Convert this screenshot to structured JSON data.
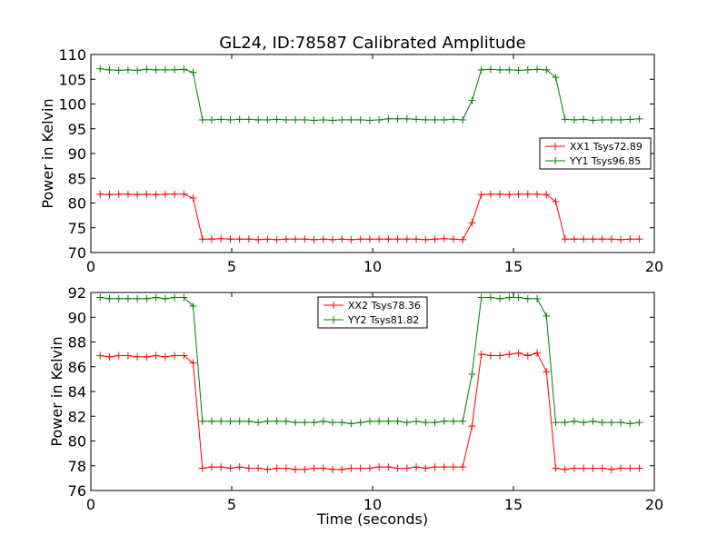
{
  "figure": {
    "title": "GL24, ID:78587 Calibrated Amplitude",
    "background": "#ffffff"
  },
  "colors": {
    "xx": "#ff0000",
    "yy": "#008000",
    "axes": "#000000"
  },
  "chart_data": [
    {
      "type": "line",
      "title": "GL24, ID:78587 Calibrated Amplitude",
      "xlabel": "",
      "ylabel": "Power in Kelvin",
      "xlim": [
        0,
        20
      ],
      "ylim": [
        70,
        110
      ],
      "xticks": [
        0,
        5,
        10,
        15,
        20
      ],
      "yticks": [
        70,
        75,
        80,
        85,
        90,
        95,
        100,
        105,
        110
      ],
      "grid": false,
      "legend_position": "center-right",
      "x": [
        0.33,
        0.66,
        0.99,
        1.32,
        1.65,
        1.98,
        2.31,
        2.64,
        2.97,
        3.3,
        3.63,
        3.96,
        4.29,
        4.62,
        4.95,
        5.28,
        5.61,
        5.94,
        6.27,
        6.6,
        6.93,
        7.26,
        7.59,
        7.92,
        8.25,
        8.58,
        8.91,
        9.24,
        9.57,
        9.9,
        10.23,
        10.56,
        10.89,
        11.22,
        11.55,
        11.88,
        12.21,
        12.54,
        12.87,
        13.2,
        13.53,
        13.86,
        14.19,
        14.52,
        14.85,
        15.18,
        15.51,
        15.84,
        16.17,
        16.5,
        16.83,
        17.16,
        17.49,
        17.82,
        18.15,
        18.48,
        18.81,
        19.14,
        19.47
      ],
      "series": [
        {
          "name": "XX1 Tsys72.89",
          "color": "#ff0000",
          "values": [
            81.8,
            81.7,
            81.8,
            81.8,
            81.7,
            81.8,
            81.7,
            81.8,
            81.8,
            81.8,
            81.0,
            72.7,
            72.7,
            72.8,
            72.7,
            72.7,
            72.7,
            72.6,
            72.7,
            72.6,
            72.7,
            72.7,
            72.7,
            72.6,
            72.7,
            72.6,
            72.7,
            72.6,
            72.7,
            72.7,
            72.7,
            72.7,
            72.7,
            72.7,
            72.7,
            72.6,
            72.7,
            72.8,
            72.7,
            72.6,
            76.0,
            81.7,
            81.8,
            81.8,
            81.7,
            81.8,
            81.8,
            81.8,
            81.7,
            80.3,
            72.7,
            72.7,
            72.7,
            72.7,
            72.7,
            72.7,
            72.6,
            72.7,
            72.7
          ]
        },
        {
          "name": "YY1 Tsys96.85",
          "color": "#008000",
          "values": [
            107.1,
            106.9,
            106.8,
            106.9,
            106.8,
            107.0,
            106.9,
            106.9,
            106.9,
            107.0,
            106.4,
            96.8,
            96.8,
            96.9,
            96.8,
            96.9,
            96.9,
            96.8,
            96.8,
            96.9,
            96.8,
            96.8,
            96.8,
            96.7,
            96.8,
            96.7,
            96.8,
            96.8,
            96.8,
            96.7,
            96.8,
            97.0,
            97.0,
            97.0,
            96.9,
            96.8,
            96.8,
            96.8,
            96.9,
            96.8,
            100.7,
            106.9,
            107.0,
            106.9,
            106.9,
            106.8,
            106.9,
            107.0,
            106.9,
            105.4,
            96.9,
            96.8,
            96.9,
            96.7,
            96.8,
            96.8,
            96.8,
            96.9,
            97.0
          ]
        }
      ]
    },
    {
      "type": "line",
      "xlabel": "Time (seconds)",
      "ylabel": "Power in Kelvin",
      "xlim": [
        0,
        20
      ],
      "ylim": [
        76,
        92
      ],
      "xticks": [
        0,
        5,
        10,
        15,
        20
      ],
      "yticks": [
        76,
        78,
        80,
        82,
        84,
        86,
        88,
        90,
        92
      ],
      "grid": false,
      "legend_position": "top-center",
      "x": [
        0.33,
        0.66,
        0.99,
        1.32,
        1.65,
        1.98,
        2.31,
        2.64,
        2.97,
        3.3,
        3.63,
        3.96,
        4.29,
        4.62,
        4.95,
        5.28,
        5.61,
        5.94,
        6.27,
        6.6,
        6.93,
        7.26,
        7.59,
        7.92,
        8.25,
        8.58,
        8.91,
        9.24,
        9.57,
        9.9,
        10.23,
        10.56,
        10.89,
        11.22,
        11.55,
        11.88,
        12.21,
        12.54,
        12.87,
        13.2,
        13.53,
        13.86,
        14.19,
        14.52,
        14.85,
        15.18,
        15.51,
        15.84,
        16.17,
        16.5,
        16.83,
        17.16,
        17.49,
        17.82,
        18.15,
        18.48,
        18.81,
        19.14,
        19.47
      ],
      "series": [
        {
          "name": "XX2 Tsys78.36",
          "color": "#ff0000",
          "values": [
            86.9,
            86.8,
            86.9,
            86.9,
            86.8,
            86.8,
            86.9,
            86.8,
            86.9,
            86.9,
            86.3,
            77.8,
            77.9,
            77.9,
            77.8,
            77.9,
            77.8,
            77.8,
            77.7,
            77.8,
            77.8,
            77.7,
            77.7,
            77.8,
            77.8,
            77.7,
            77.7,
            77.8,
            77.8,
            77.8,
            77.9,
            77.9,
            77.8,
            77.8,
            77.9,
            77.8,
            77.9,
            77.9,
            77.9,
            77.9,
            81.2,
            87.0,
            86.9,
            86.9,
            87.0,
            87.1,
            86.9,
            87.1,
            85.6,
            77.8,
            77.7,
            77.8,
            77.8,
            77.8,
            77.8,
            77.7,
            77.8,
            77.8,
            77.8
          ]
        },
        {
          "name": "YY2 Tsys81.82",
          "color": "#008000",
          "values": [
            91.6,
            91.5,
            91.5,
            91.5,
            91.5,
            91.5,
            91.6,
            91.5,
            91.6,
            91.6,
            90.9,
            81.6,
            81.6,
            81.6,
            81.6,
            81.6,
            81.6,
            81.5,
            81.6,
            81.6,
            81.6,
            81.5,
            81.5,
            81.5,
            81.6,
            81.5,
            81.5,
            81.4,
            81.5,
            81.6,
            81.6,
            81.6,
            81.6,
            81.5,
            81.6,
            81.5,
            81.5,
            81.6,
            81.6,
            81.6,
            85.4,
            91.6,
            91.6,
            91.5,
            91.6,
            91.6,
            91.5,
            91.5,
            90.1,
            81.5,
            81.5,
            81.6,
            81.5,
            81.6,
            81.5,
            81.5,
            81.5,
            81.4,
            81.5
          ]
        }
      ]
    }
  ]
}
